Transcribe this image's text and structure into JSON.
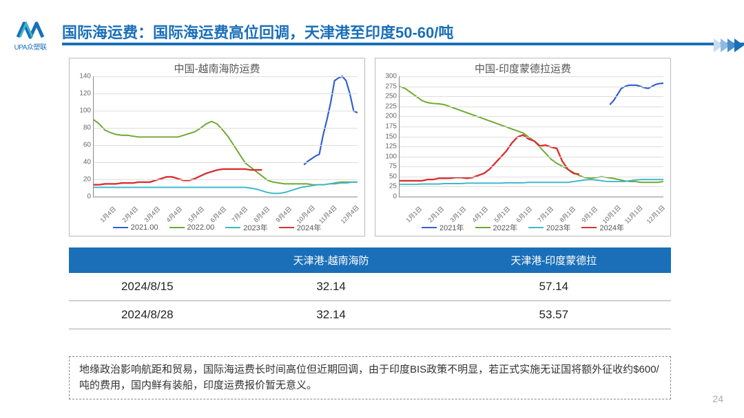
{
  "logo": {
    "text": "UPA众塑联",
    "color": "#1a6fb8"
  },
  "title": "国际海运费：国际海运费高位回调，天津港至印度50-60/吨",
  "title_color": "#1a6fb8",
  "arrows_colors": [
    "#c9ddef",
    "#8fbbe0",
    "#4a8fc9",
    "#1a6fb8"
  ],
  "page_number": "24",
  "chart_left": {
    "title": "中国-越南海防运费",
    "type": "line",
    "ylim": [
      0,
      140
    ],
    "ytick_step": 20,
    "x_labels": [
      "1月4日",
      "2月4日",
      "3月4日",
      "4月4日",
      "5月4日",
      "6月4日",
      "7月4日",
      "8月4日",
      "9月4日",
      "10月4日",
      "11月4日",
      "12月4日"
    ],
    "grid_color": "#ddd",
    "axis_color": "#888",
    "label_fontsize": 10,
    "series": [
      {
        "name": "2021.00",
        "color": "#2f5fd0",
        "width": 2.2,
        "data": [
          null,
          null,
          null,
          null,
          null,
          null,
          null,
          null,
          38,
          42,
          45,
          48,
          50,
          72,
          90,
          110,
          135,
          138,
          140,
          135,
          120,
          100,
          98
        ],
        "x_start": 32,
        "x_end": 47
      },
      {
        "name": "2022.00",
        "color": "#6fa82e",
        "width": 2,
        "data": [
          90,
          85,
          78,
          75,
          73,
          72,
          72,
          71,
          70,
          70,
          70,
          70,
          70,
          70,
          70,
          70,
          72,
          74,
          76,
          80,
          85,
          88,
          85,
          78,
          70,
          60,
          50,
          40,
          35,
          30,
          25,
          20,
          18,
          17,
          16,
          16,
          16,
          16,
          16,
          15,
          15,
          15,
          16,
          17,
          18,
          18,
          18,
          18
        ]
      },
      {
        "name": "2023年",
        "color": "#3fb8c9",
        "width": 2,
        "data": [
          12,
          12,
          12,
          12,
          12,
          12,
          12,
          12,
          12,
          12,
          12,
          12,
          12,
          12,
          12,
          12,
          12,
          12,
          12,
          12,
          12,
          12,
          12,
          12,
          12,
          12,
          12,
          12,
          11,
          10,
          8,
          6,
          5,
          5,
          6,
          8,
          10,
          12,
          13,
          14,
          15,
          15,
          16,
          16,
          17,
          17,
          18,
          18
        ]
      },
      {
        "name": "2024年",
        "color": "#d93030",
        "width": 2.4,
        "data": [
          15,
          15,
          16,
          16,
          16,
          17,
          17,
          17,
          18,
          18,
          18,
          20,
          22,
          24,
          24,
          22,
          20,
          20,
          22,
          25,
          28,
          30,
          32,
          33,
          33,
          33,
          33,
          33,
          32,
          32,
          32
        ],
        "x_start": 0,
        "x_end": 30
      }
    ]
  },
  "chart_right": {
    "title": "中国-印度蒙德拉运费",
    "type": "line",
    "ylim": [
      0,
      300
    ],
    "ytick_step": 25,
    "x_labels": [
      "1月1日",
      "2月1日",
      "3月1日",
      "4月1日",
      "5月1日",
      "6月1日",
      "7月1日",
      "8月1日",
      "9月1日",
      "10月1日",
      "11月1日",
      "12月1日"
    ],
    "grid_color": "#ddd",
    "axis_color": "#888",
    "label_fontsize": 10,
    "series": [
      {
        "name": "2021年",
        "color": "#2f5fd0",
        "width": 2.2,
        "data": [
          null,
          null,
          null,
          null,
          null,
          null,
          null,
          null,
          230,
          240,
          255,
          270,
          275,
          278,
          278,
          278,
          275,
          272,
          270,
          275,
          280,
          282,
          283
        ],
        "x_start": 32,
        "x_end": 47
      },
      {
        "name": "2022年",
        "color": "#6fa82e",
        "width": 2,
        "data": [
          275,
          270,
          260,
          250,
          240,
          235,
          233,
          232,
          230,
          225,
          220,
          215,
          210,
          205,
          200,
          195,
          190,
          185,
          180,
          175,
          170,
          165,
          160,
          150,
          140,
          125,
          110,
          95,
          85,
          78,
          70,
          62,
          55,
          50,
          48,
          50,
          52,
          50,
          48,
          45,
          42,
          40,
          40,
          38,
          38,
          38,
          38,
          40
        ]
      },
      {
        "name": "2023年",
        "color": "#3fb8c9",
        "width": 2,
        "data": [
          33,
          33,
          33,
          33,
          34,
          34,
          34,
          34,
          35,
          35,
          35,
          35,
          36,
          36,
          36,
          36,
          36,
          36,
          36,
          37,
          37,
          37,
          37,
          38,
          38,
          38,
          38,
          38,
          38,
          38,
          38,
          40,
          42,
          44,
          45,
          44,
          42,
          40,
          40,
          40,
          40,
          42,
          44,
          45,
          45,
          45,
          45,
          45
        ]
      },
      {
        "name": "2024年",
        "color": "#d93030",
        "width": 2.4,
        "data": [
          42,
          42,
          42,
          42,
          42,
          45,
          45,
          48,
          48,
          48,
          50,
          50,
          48,
          50,
          55,
          60,
          70,
          85,
          100,
          115,
          135,
          150,
          155,
          145,
          140,
          128,
          130,
          125,
          122,
          90,
          70,
          60,
          58
        ],
        "x_start": 0,
        "x_end": 32
      }
    ]
  },
  "table": {
    "header_bg": "#1a6fb8",
    "columns": [
      "",
      "天津港-越南海防",
      "天津港-印度蒙德拉"
    ],
    "rows": [
      [
        "2024/8/15",
        "32.14",
        "57.14"
      ],
      [
        "2024/8/28",
        "32.14",
        "53.57"
      ]
    ]
  },
  "note": "地缘政治影响航距和贸易，国际海运费长时间高位但近期回调，由于印度BIS政策不明显，若正式实施无证国将额外征收约$600/吨的费用，国内鲜有装船，印度运费报价暂无意义。"
}
